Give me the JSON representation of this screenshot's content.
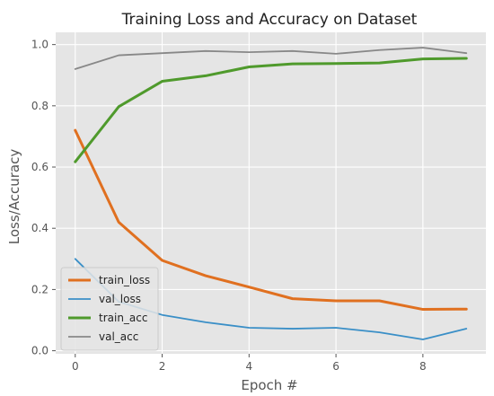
{
  "chart_data": {
    "type": "line",
    "title": "Training Loss and Accuracy on Dataset",
    "xlabel": "Epoch #",
    "ylabel": "Loss/Accuracy",
    "x": [
      0,
      1,
      2,
      3,
      4,
      5,
      6,
      7,
      8,
      9
    ],
    "xlim": [
      -0.45,
      9.45
    ],
    "ylim": [
      -0.01,
      1.04
    ],
    "xticks": [
      0,
      2,
      4,
      6,
      8
    ],
    "yticks": [
      0.0,
      0.2,
      0.4,
      0.6,
      0.8,
      1.0
    ],
    "xtick_labels": [
      "0",
      "2",
      "4",
      "6",
      "8"
    ],
    "ytick_labels": [
      "0.0",
      "0.2",
      "0.4",
      "0.6",
      "0.8",
      "1.0"
    ],
    "grid": true,
    "legend_position": "lower-left",
    "background_color": "#e5e5e5",
    "series": [
      {
        "name": "train_loss",
        "color": "#e07020",
        "line_width": "thick",
        "values": [
          0.72,
          0.42,
          0.295,
          0.245,
          0.208,
          0.17,
          0.163,
          0.163,
          0.135,
          0.136
        ]
      },
      {
        "name": "val_loss",
        "color": "#3a8fc7",
        "line_width": "thin",
        "values": [
          0.3,
          0.16,
          0.117,
          0.093,
          0.075,
          0.072,
          0.075,
          0.06,
          0.037,
          0.072
        ]
      },
      {
        "name": "train_acc",
        "color": "#4f9a2c",
        "line_width": "thick",
        "values": [
          0.617,
          0.797,
          0.88,
          0.898,
          0.927,
          0.937,
          0.938,
          0.94,
          0.953,
          0.955
        ]
      },
      {
        "name": "val_acc",
        "color": "#888888",
        "line_width": "thin",
        "values": [
          0.92,
          0.965,
          0.972,
          0.979,
          0.975,
          0.979,
          0.97,
          0.982,
          0.99,
          0.972
        ]
      }
    ]
  }
}
